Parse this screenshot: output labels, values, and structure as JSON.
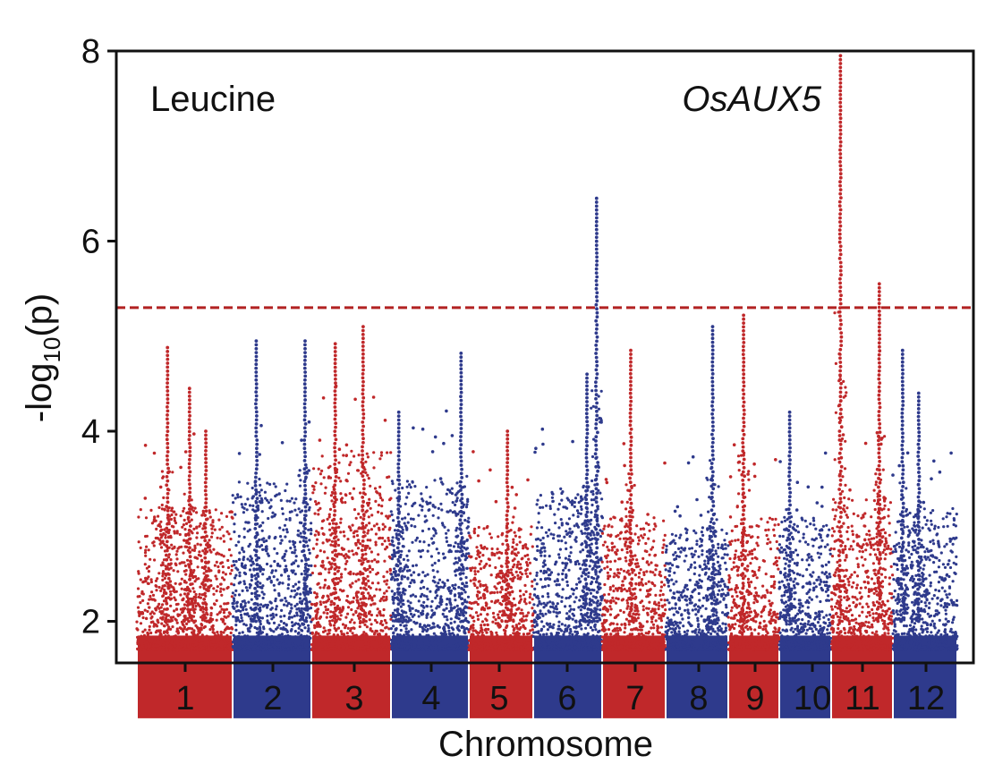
{
  "chart_data": {
    "type": "scatter",
    "subtype": "manhattan",
    "title": "",
    "xlabel": "Chromosome",
    "ylabel_main": "-log",
    "ylabel_sub": "10",
    "ylabel_tail": "(p)",
    "ylim": [
      0,
      8.25
    ],
    "yticks": [
      2,
      4,
      6,
      8
    ],
    "ytick_labels": [
      "2",
      "4",
      "6",
      "8"
    ],
    "grid": false,
    "threshold": {
      "value": 5.3,
      "style": "dashed",
      "color": "#b22222"
    },
    "colors": {
      "odd": "#c0282a",
      "even": "#2e3a8c",
      "threshold": "#b22222",
      "axis": "#111111"
    },
    "annotations": [
      {
        "text": "Leucine",
        "italic": false
      },
      {
        "text": "OsAUX5",
        "italic": true
      }
    ],
    "chromosomes": [
      {
        "label": "1",
        "baseline_top": 3.2,
        "peaks": [
          [
            0.32,
            4.88
          ],
          [
            0.55,
            4.45
          ],
          [
            0.72,
            4.0
          ]
        ]
      },
      {
        "label": "2",
        "baseline_top": 3.5,
        "peaks": [
          [
            0.3,
            4.95
          ],
          [
            0.92,
            4.95
          ]
        ]
      },
      {
        "label": "3",
        "baseline_top": 3.8,
        "peaks": [
          [
            0.3,
            4.92
          ],
          [
            0.65,
            5.1
          ]
        ]
      },
      {
        "label": "4",
        "baseline_top": 3.5,
        "peaks": [
          [
            0.1,
            4.2
          ],
          [
            0.9,
            4.82
          ]
        ]
      },
      {
        "label": "5",
        "baseline_top": 3.0,
        "peaks": [
          [
            0.6,
            4.0
          ]
        ]
      },
      {
        "label": "6",
        "baseline_top": 3.4,
        "peaks": [
          [
            0.92,
            6.45
          ],
          [
            0.78,
            4.6
          ]
        ]
      },
      {
        "label": "7",
        "baseline_top": 3.1,
        "peaks": [
          [
            0.45,
            4.85
          ]
        ]
      },
      {
        "label": "8",
        "baseline_top": 3.0,
        "peaks": [
          [
            0.75,
            5.1
          ]
        ]
      },
      {
        "label": "9",
        "baseline_top": 3.1,
        "peaks": [
          [
            0.3,
            5.22
          ]
        ]
      },
      {
        "label": "10",
        "baseline_top": 3.1,
        "peaks": [
          [
            0.2,
            4.2
          ]
        ]
      },
      {
        "label": "11",
        "baseline_top": 3.3,
        "peaks": [
          [
            0.15,
            7.95
          ],
          [
            0.78,
            5.55
          ]
        ]
      },
      {
        "label": "12",
        "baseline_top": 3.2,
        "peaks": [
          [
            0.15,
            4.85
          ],
          [
            0.4,
            4.4
          ]
        ]
      }
    ]
  }
}
